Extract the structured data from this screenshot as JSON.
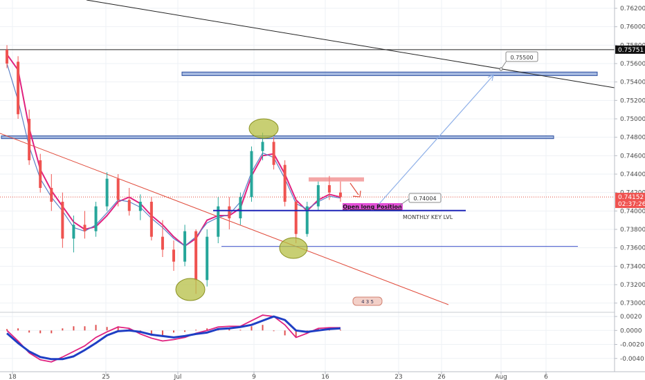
{
  "chart_data": [
    {
      "type": "candlestick",
      "title": "",
      "ylim": [
        0.729,
        0.7629
      ],
      "y_ticks": [
        "0.76200",
        "0.76000",
        "0.75800",
        "0.75600",
        "0.75400",
        "0.75200",
        "0.75000",
        "0.74800",
        "0.74600",
        "0.74400",
        "0.74200",
        "0.74000",
        "0.73800",
        "0.73600",
        "0.73400",
        "0.73200",
        "0.73000"
      ],
      "x_ticks": [
        "18",
        "25",
        "Jul",
        "9",
        "16",
        "23",
        "26",
        "Aug",
        "6"
      ],
      "grid": true,
      "series": [
        {
          "name": "",
          "color": "#e0217f",
          "values": [
            0.757,
            0.7553,
            0.749,
            0.7445,
            0.7422,
            0.7405,
            0.7388,
            0.738,
            0.7383,
            0.7395,
            0.741,
            0.7415,
            0.7408,
            0.7395,
            0.7385,
            0.7372,
            0.7362,
            0.737,
            0.739,
            0.7395,
            0.7395,
            0.7403,
            0.7438,
            0.746,
            0.7462,
            0.744,
            0.7412,
            0.74,
            0.7412,
            0.7418,
            0.7415
          ]
        },
        {
          "name": "",
          "color": "#5b80c6",
          "values": [
            0.756,
            0.752,
            0.747,
            0.7435,
            0.7415,
            0.74,
            0.7382,
            0.7378,
            0.7385,
            0.7398,
            0.7412,
            0.741,
            0.7404,
            0.7392,
            0.7382,
            0.737,
            0.7362,
            0.7372,
            0.7387,
            0.7393,
            0.7396,
            0.741,
            0.7442,
            0.7463,
            0.7458,
            0.7435,
            0.7408,
            0.7402,
            0.741,
            0.7416,
            0.7414
          ]
        }
      ],
      "candles": [
        [
          0.7575,
          0.758,
          0.7555,
          0.756
        ],
        [
          0.7562,
          0.7568,
          0.75,
          0.7505
        ],
        [
          0.75,
          0.751,
          0.745,
          0.7455
        ],
        [
          0.7455,
          0.7462,
          0.742,
          0.7425
        ],
        [
          0.7425,
          0.744,
          0.74,
          0.741
        ],
        [
          0.741,
          0.742,
          0.736,
          0.737
        ],
        [
          0.737,
          0.7395,
          0.7355,
          0.7385
        ],
        [
          0.7385,
          0.74,
          0.737,
          0.7378
        ],
        [
          0.7378,
          0.741,
          0.7372,
          0.7405
        ],
        [
          0.7405,
          0.7442,
          0.74,
          0.7435
        ],
        [
          0.7435,
          0.744,
          0.7405,
          0.7412
        ],
        [
          0.7412,
          0.7425,
          0.7395,
          0.74
        ],
        [
          0.74,
          0.7418,
          0.739,
          0.741
        ],
        [
          0.741,
          0.7415,
          0.7368,
          0.7372
        ],
        [
          0.7372,
          0.739,
          0.735,
          0.7358
        ],
        [
          0.7358,
          0.7368,
          0.7335,
          0.7345
        ],
        [
          0.7345,
          0.7385,
          0.734,
          0.7378
        ],
        [
          0.7378,
          0.738,
          0.731,
          0.7325
        ],
        [
          0.7325,
          0.738,
          0.7318,
          0.7372
        ],
        [
          0.7372,
          0.7415,
          0.7365,
          0.7405
        ],
        [
          0.7405,
          0.7415,
          0.738,
          0.7392
        ],
        [
          0.7392,
          0.742,
          0.7385,
          0.7415
        ],
        [
          0.7415,
          0.747,
          0.741,
          0.7465
        ],
        [
          0.7465,
          0.7485,
          0.7455,
          0.7475
        ],
        [
          0.7475,
          0.748,
          0.7445,
          0.745
        ],
        [
          0.745,
          0.7455,
          0.7405,
          0.741
        ],
        [
          0.741,
          0.7415,
          0.7365,
          0.7375
        ],
        [
          0.7375,
          0.741,
          0.7372,
          0.7405
        ],
        [
          0.7405,
          0.7432,
          0.74,
          0.7428
        ],
        [
          0.7428,
          0.7438,
          0.7412,
          0.742
        ],
        [
          0.742,
          0.7432,
          0.741,
          0.7415
        ]
      ],
      "last_price": "0.74152",
      "countdown": "02:37:26",
      "top_line_price": "0.75751",
      "annotations": {
        "target_callout": "0.75500",
        "entry_callout": "0.74004",
        "entry_label": "Open long Position",
        "key_level_label": "MONTHLY KEY LVL",
        "events_marker": "4  3 5"
      },
      "colors": {
        "up": "#26a69a",
        "down": "#ef5350",
        "ma_fast": "#e0217f",
        "ma_slow": "#5b80c6",
        "zone": "#5b7fc6",
        "ellipse": "#b6bf44"
      }
    },
    {
      "type": "macd",
      "ylim": [
        -0.0059,
        0.0026
      ],
      "y_ticks": [
        "0.0020",
        "0.0000",
        "-0.0020",
        "-0.0040"
      ],
      "series": [
        {
          "name": "",
          "color": "#1f3fc4",
          "values": [
            -0.0004,
            -0.0018,
            -0.003,
            -0.0038,
            -0.0041,
            -0.0041,
            -0.0037,
            -0.0028,
            -0.0018,
            -0.0007,
            -0.0001,
            0.0,
            -0.0002,
            -0.0006,
            -0.0008,
            -0.001,
            -0.0008,
            -0.0005,
            -0.0003,
            0.0002,
            0.0003,
            0.0005,
            0.0008,
            0.0014,
            0.002,
            0.0015,
            0.0,
            -0.0002,
            0.0,
            0.0002,
            0.0003
          ]
        },
        {
          "name": "",
          "color": "#e0217f",
          "values": [
            0.0,
            -0.0015,
            -0.0032,
            -0.0042,
            -0.0045,
            -0.0038,
            -0.003,
            -0.0022,
            -0.001,
            -0.0002,
            0.0005,
            0.0003,
            -0.0005,
            -0.0011,
            -0.0015,
            -0.0013,
            -0.001,
            -0.0004,
            0.0,
            0.0005,
            0.0006,
            0.0006,
            0.0014,
            0.0022,
            0.002,
            0.0008,
            -0.001,
            -0.0004,
            0.0003,
            0.0004,
            0.0004
          ]
        },
        {
          "name": "",
          "color": "#e05050",
          "values": [
            0.0002,
            0.0003,
            -0.0003,
            -0.0004,
            -0.0004,
            0.0003,
            0.0006,
            0.0006,
            0.0008,
            0.0005,
            0.0006,
            0.0003,
            -0.0003,
            -0.0005,
            -0.0007,
            -0.0003,
            -0.0002,
            0.0001,
            0.0003,
            0.0003,
            0.0003,
            0.0001,
            0.0006,
            0.0008,
            0.0,
            -0.0007,
            -0.001,
            -0.0002,
            0.0003,
            0.0002,
            0.0001
          ]
        }
      ]
    }
  ]
}
